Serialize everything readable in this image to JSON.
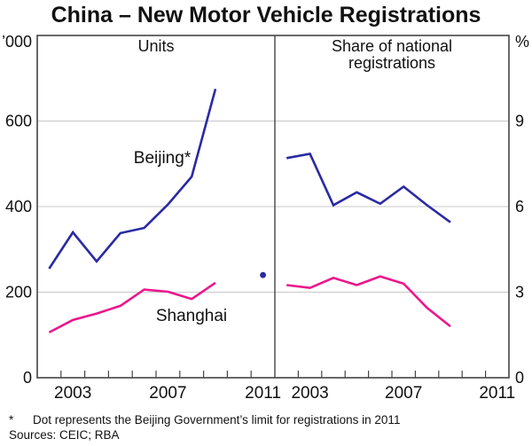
{
  "title": "China – New Motor Vehicle Registrations",
  "colors": {
    "beijing": "#2a2aa4",
    "shanghai": "#ec168c",
    "grid": "#c9c9c9",
    "frame": "#444444",
    "text": "#111111"
  },
  "footnote": {
    "marker": "*",
    "text": "Dot represents the Beijing Government’s limit for registrations in 2011"
  },
  "sources_line": "Sources: CEIC; RBA",
  "chart_data": [
    {
      "type": "line",
      "panel": "left",
      "panel_title": "Units",
      "axis_unit": "’000",
      "axis_side": "left",
      "ylim": [
        0,
        800
      ],
      "yticks": [
        0,
        200,
        400,
        600
      ],
      "xlim": [
        2002,
        2012
      ],
      "x_years": [
        2002,
        2003,
        2004,
        2005,
        2006,
        2007,
        2008,
        2009
      ],
      "xtick_years": [
        2003,
        2004,
        2005,
        2006,
        2007,
        2008,
        2009,
        2010,
        2011
      ],
      "xtick_labels": [
        2003,
        2007,
        2011
      ],
      "grid": true,
      "series": [
        {
          "name": "Beijing*",
          "color": "beijing",
          "values": [
            255,
            340,
            272,
            338,
            350,
            405,
            470,
            675
          ]
        },
        {
          "name": "Shanghai",
          "color": "shanghai",
          "values": [
            106,
            135,
            150,
            168,
            206,
            201,
            184,
            222
          ]
        }
      ],
      "annotation_dot": {
        "year": 2011,
        "value": 240,
        "series": "Beijing",
        "meaning": "Beijing Government’s limit for registrations in 2011"
      }
    },
    {
      "type": "line",
      "panel": "right",
      "panel_title": "Share of national registrations",
      "panel_title_lines": [
        "Share of national",
        "registrations"
      ],
      "axis_unit": "%",
      "axis_side": "right",
      "ylim": [
        0,
        12
      ],
      "yticks": [
        0,
        3,
        6,
        9
      ],
      "xlim": [
        2002,
        2012
      ],
      "x_years": [
        2002,
        2003,
        2004,
        2005,
        2006,
        2007,
        2008,
        2009
      ],
      "xtick_years": [
        2003,
        2004,
        2005,
        2006,
        2007,
        2008,
        2009,
        2010,
        2011
      ],
      "xtick_labels": [
        2003,
        2007,
        2011
      ],
      "grid": true,
      "series": [
        {
          "name": "Beijing",
          "color": "beijing",
          "values": [
            7.7,
            7.85,
            6.05,
            6.5,
            6.1,
            6.7,
            6.05,
            5.45
          ]
        },
        {
          "name": "Shanghai",
          "color": "shanghai",
          "values": [
            3.25,
            3.15,
            3.5,
            3.25,
            3.55,
            3.3,
            2.45,
            1.8
          ]
        }
      ]
    }
  ]
}
